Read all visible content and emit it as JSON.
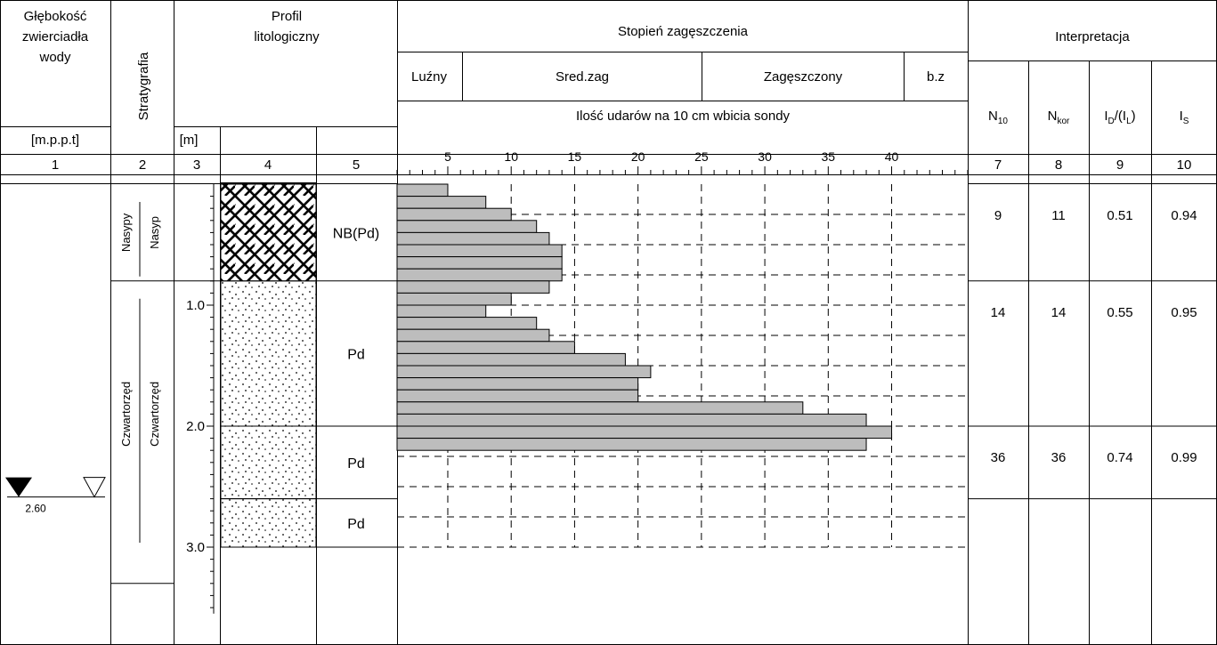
{
  "header": {
    "col1": [
      "Głębokość",
      "zwierciadła",
      "wody"
    ],
    "col1_unit": "[m.p.p.t]",
    "col2": "Stratygrafia",
    "col3_unit": "[m]",
    "col4": [
      "Profil",
      "litologiczny"
    ],
    "title": "Stopień zagęszczenia",
    "categories": [
      "Luźny",
      "Sred.zag",
      "Zagęszczony",
      "b.z"
    ],
    "subtitle": "Ilość udarów na 10 cm wbicia sondy",
    "interp": "Interpretacja",
    "n10": {
      "main": "N",
      "sub": "10"
    },
    "nkor": {
      "main": "N",
      "sub": "kor"
    },
    "id_il": {
      "p1": "I",
      "s1": "D",
      "p2": "/(I",
      "s2": "L",
      "p3": ")"
    },
    "is": {
      "main": "I",
      "sub": "S"
    },
    "numbers": [
      "1",
      "2",
      "3",
      "4",
      "5",
      "7",
      "8",
      "9",
      "10"
    ]
  },
  "water": {
    "depth_label": "2.60",
    "depth": 2.6
  },
  "stratigraphy": [
    {
      "label_a": "Nasypy",
      "label_b": "Nasyp",
      "top": 0.0,
      "bottom": 0.8
    },
    {
      "label_a": "Czwartorzęd",
      "label_b": "Czwartorzęd",
      "top": 0.8,
      "bottom": 3.0
    }
  ],
  "depth_axis": {
    "min": -0.1,
    "max": 3.55,
    "labels": [
      {
        "value": 1.0,
        "text": "1.0"
      },
      {
        "value": 2.0,
        "text": "2.0"
      },
      {
        "value": 3.0,
        "text": "3.0"
      }
    ]
  },
  "layers": [
    {
      "name": "NB(Pd)",
      "top": 0.0,
      "bottom": 0.8,
      "pattern": "fill"
    },
    {
      "name": "Pd",
      "top": 0.8,
      "bottom": 2.0,
      "pattern": "sand"
    },
    {
      "name": "Pd",
      "top": 2.0,
      "bottom": 2.6,
      "pattern": "sand"
    },
    {
      "name": "Pd",
      "top": 2.6,
      "bottom": 3.0,
      "pattern": "sand"
    }
  ],
  "interpretation": [
    {
      "top": 0.0,
      "bottom": 0.8,
      "n10": "9",
      "nkor": "11",
      "id": "0.51",
      "is": "0.94"
    },
    {
      "top": 0.8,
      "bottom": 2.0,
      "n10": "14",
      "nkor": "14",
      "id": "0.55",
      "is": "0.95"
    },
    {
      "top": 2.0,
      "bottom": 2.6,
      "n10": "36",
      "nkor": "36",
      "id": "0.74",
      "is": "0.99"
    }
  ],
  "chart_data": {
    "type": "bar",
    "orientation": "horizontal",
    "title": "Stopień zagęszczenia",
    "xlabel": "Ilość udarów na 10 cm wbicia sondy",
    "ylabel": "[m]",
    "xlim": [
      1,
      46
    ],
    "xticks": [
      5,
      10,
      15,
      20,
      25,
      30,
      35,
      40
    ],
    "ylim": [
      -0.1,
      3.55
    ],
    "bar_height": 0.1,
    "depths": [
      0.0,
      0.1,
      0.2,
      0.3,
      0.4,
      0.5,
      0.6,
      0.7,
      0.8,
      0.9,
      1.0,
      1.1,
      1.2,
      1.3,
      1.4,
      1.5,
      1.6,
      1.7,
      1.8,
      1.9,
      2.0,
      2.1,
      2.2,
      2.3
    ],
    "values": [
      5,
      8,
      10,
      12,
      13,
      14,
      14,
      14,
      13,
      10,
      8,
      12,
      13,
      15,
      19,
      21,
      20,
      20,
      33,
      38,
      40,
      38,
      0,
      0
    ],
    "grid": true
  }
}
